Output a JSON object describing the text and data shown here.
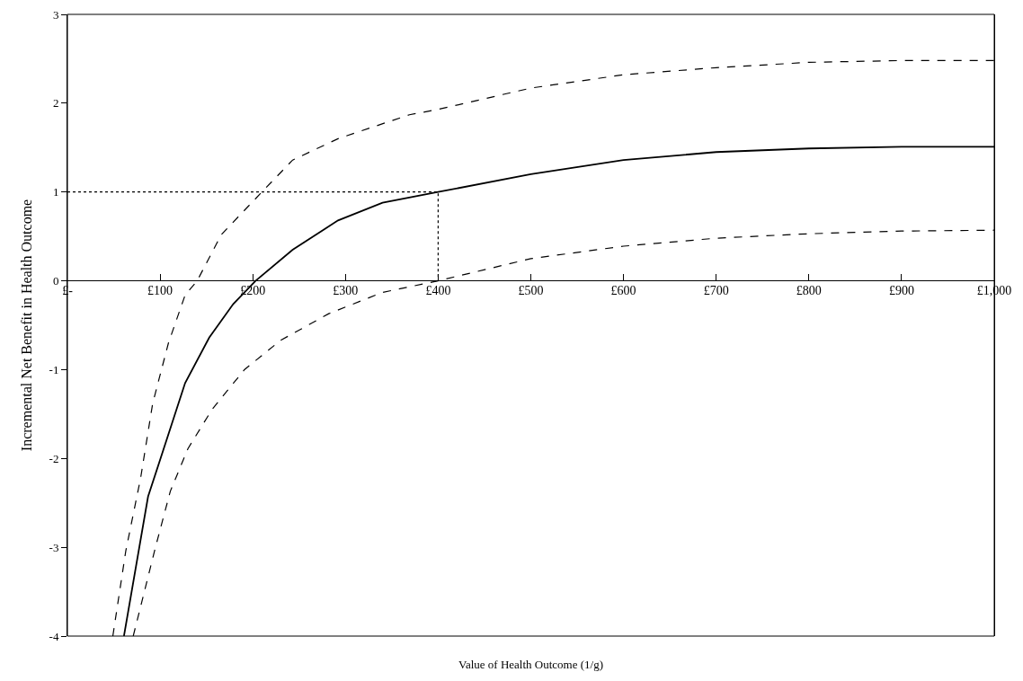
{
  "chart_data": {
    "type": "line",
    "xlabel": "Value of Health Outcome (1/g)",
    "ylabel": "Incremental Net Benefit in Health Outcome",
    "xlim": [
      0,
      1000
    ],
    "ylim": [
      -4,
      3
    ],
    "xticks": [
      {
        "value": 0,
        "label": "£-"
      },
      {
        "value": 100,
        "label": "£100"
      },
      {
        "value": 200,
        "label": "£200"
      },
      {
        "value": 300,
        "label": "£300"
      },
      {
        "value": 400,
        "label": "£400"
      },
      {
        "value": 500,
        "label": "£500"
      },
      {
        "value": 600,
        "label": "£600"
      },
      {
        "value": 700,
        "label": "£700"
      },
      {
        "value": 800,
        "label": "£800"
      },
      {
        "value": 900,
        "label": "£900"
      },
      {
        "value": 1000,
        "label": "£1,000"
      }
    ],
    "yticks": [
      -4,
      -3,
      -2,
      -1,
      0,
      1,
      2,
      3
    ],
    "marker": "none",
    "series": [
      {
        "color": "#000000",
        "line_style": "dashed",
        "x": [
          49,
          63,
          79,
          92,
          109,
          127,
          140,
          166,
          208,
          243,
          292,
          369,
          400,
          500,
          600,
          700,
          800,
          900,
          1000
        ],
        "values": [
          -4,
          -3.04,
          -2.22,
          -1.38,
          -0.7,
          -0.16,
          0,
          0.52,
          0.98,
          1.36,
          1.6,
          1.87,
          1.93,
          2.17,
          2.32,
          2.4,
          2.46,
          2.48,
          2.48
        ]
      },
      {
        "color": "#000000",
        "line_style": "solid",
        "x": [
          61,
          87,
          108,
          127,
          153,
          179,
          203,
          243,
          292,
          340,
          400,
          500,
          600,
          700,
          800,
          900,
          1000
        ],
        "values": [
          -4,
          -2.43,
          -1.76,
          -1.15,
          -0.64,
          -0.26,
          0,
          0.35,
          0.68,
          0.88,
          1,
          1.2,
          1.36,
          1.45,
          1.49,
          1.51,
          1.51
        ]
      },
      {
        "color": "#000000",
        "line_style": "dashed",
        "x": [
          71,
          95,
          111,
          130,
          156,
          191,
          230,
          282,
          340,
          400,
          500,
          600,
          700,
          800,
          900,
          1000
        ],
        "values": [
          -4,
          -3,
          -2.37,
          -1.89,
          -1.45,
          -1,
          -0.67,
          -0.37,
          -0.13,
          0,
          0.25,
          0.39,
          0.48,
          0.53,
          0.56,
          0.57
        ]
      },
      {
        "color": "#000000",
        "line_style": "dotted",
        "x": [
          0,
          400,
          400
        ],
        "values": [
          1,
          1,
          0
        ]
      }
    ]
  }
}
